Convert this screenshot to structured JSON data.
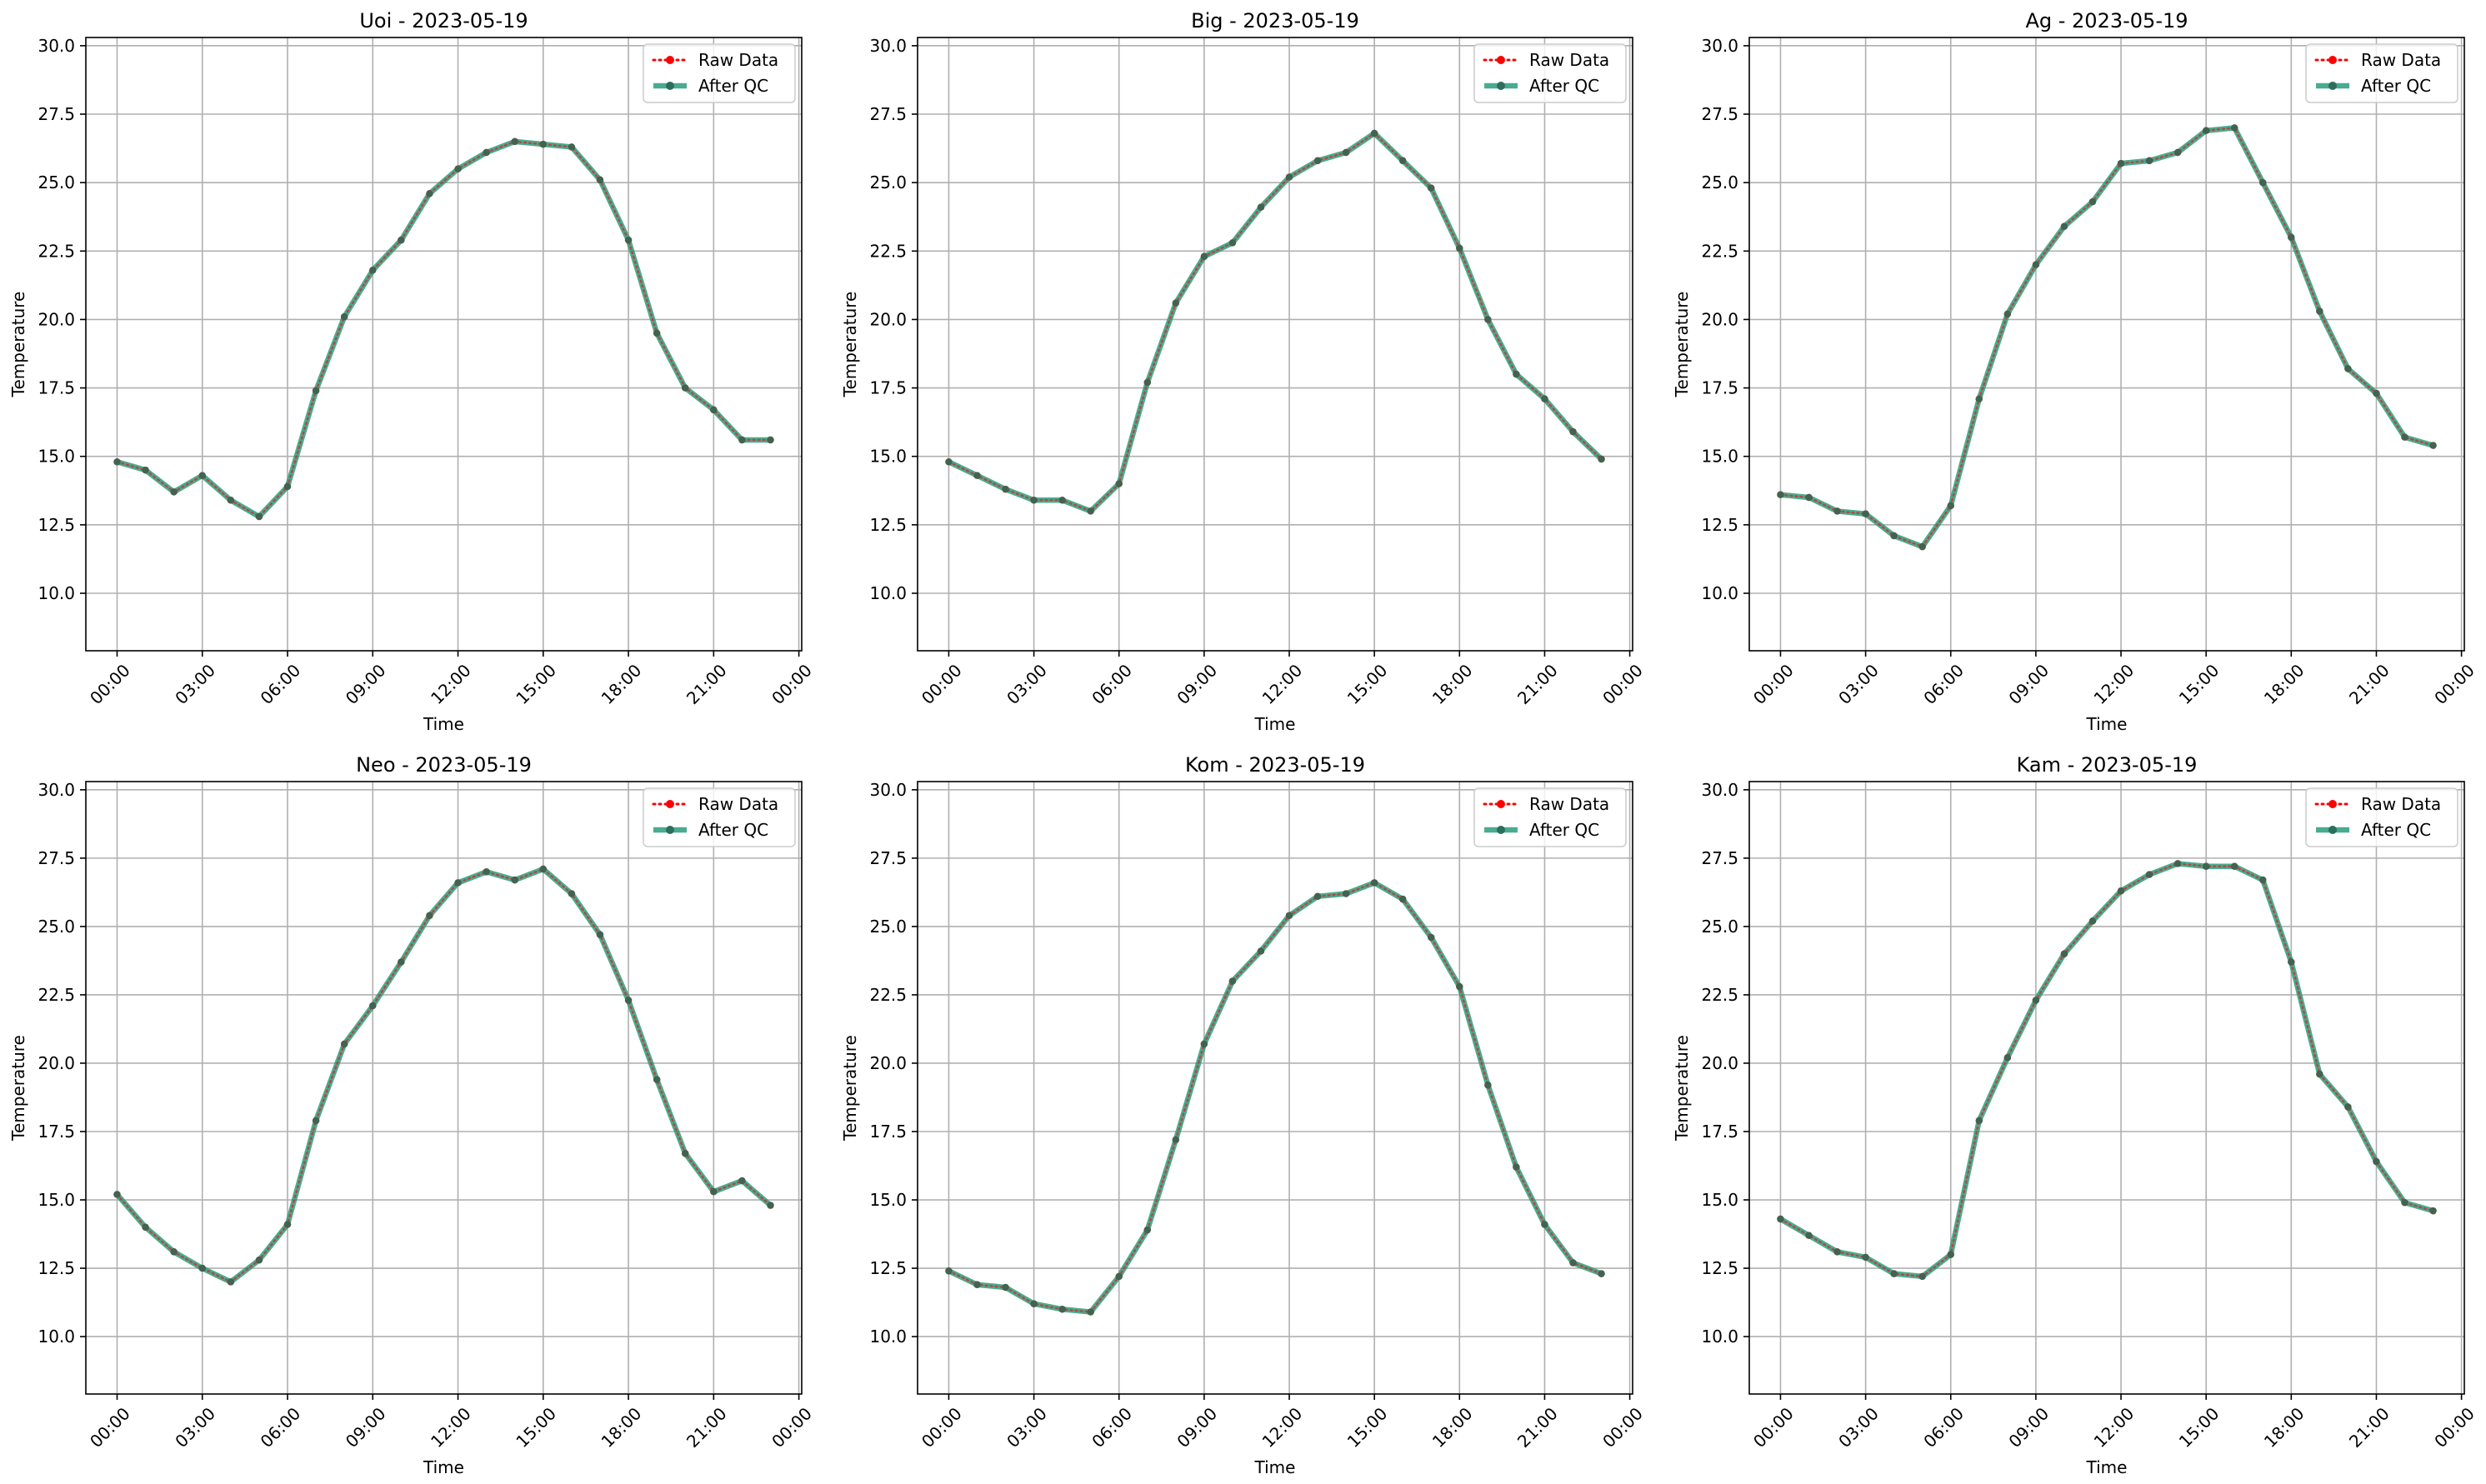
{
  "figure": {
    "background": "#ffffff"
  },
  "style": {
    "raw_color": "#ff0000",
    "qc_color": "#2a9d7e",
    "grid_color": "#b0b0b0"
  },
  "chart_data": [
    {
      "type": "line",
      "title": "Uoi - 2023-05-19",
      "xlabel": "Time",
      "ylabel": "Temperature",
      "xlim": [
        -1.1,
        24.1
      ],
      "ylim": [
        7.9,
        30.3
      ],
      "xticks": [
        0,
        3,
        6,
        9,
        12,
        15,
        18,
        21,
        24
      ],
      "xtick_labels": [
        "00:00",
        "03:00",
        "06:00",
        "09:00",
        "12:00",
        "15:00",
        "18:00",
        "21:00",
        "00:00"
      ],
      "yticks": [
        10.0,
        12.5,
        15.0,
        17.5,
        20.0,
        22.5,
        25.0,
        27.5,
        30.0
      ],
      "ytick_labels": [
        "10.0",
        "12.5",
        "15.0",
        "17.5",
        "20.0",
        "22.5",
        "25.0",
        "27.5",
        "30.0"
      ],
      "grid": true,
      "legend_position": "upper-right",
      "x": [
        0,
        1,
        2,
        3,
        4,
        5,
        6,
        7,
        8,
        9,
        10,
        11,
        12,
        13,
        14,
        15,
        16,
        17,
        18,
        19,
        20,
        21,
        22,
        23
      ],
      "series": [
        {
          "name": "Raw Data",
          "color": "#ff0000",
          "style": "dotted",
          "values": [
            14.8,
            14.5,
            13.7,
            14.3,
            13.4,
            12.8,
            13.9,
            17.4,
            20.1,
            21.8,
            22.9,
            24.6,
            25.5,
            26.1,
            26.5,
            26.4,
            26.3,
            25.1,
            22.9,
            19.5,
            17.5,
            16.7,
            15.6,
            15.6
          ]
        },
        {
          "name": "After QC",
          "color": "#2a9d7e",
          "style": "solid",
          "values": [
            14.8,
            14.5,
            13.7,
            14.3,
            13.4,
            12.8,
            13.9,
            17.4,
            20.1,
            21.8,
            22.9,
            24.6,
            25.5,
            26.1,
            26.5,
            26.4,
            26.3,
            25.1,
            22.9,
            19.5,
            17.5,
            16.7,
            15.6,
            15.6
          ]
        }
      ]
    },
    {
      "type": "line",
      "title": "Big - 2023-05-19",
      "xlabel": "Time",
      "ylabel": "Temperature",
      "xlim": [
        -1.1,
        24.1
      ],
      "ylim": [
        7.9,
        30.3
      ],
      "xticks": [
        0,
        3,
        6,
        9,
        12,
        15,
        18,
        21,
        24
      ],
      "xtick_labels": [
        "00:00",
        "03:00",
        "06:00",
        "09:00",
        "12:00",
        "15:00",
        "18:00",
        "21:00",
        "00:00"
      ],
      "yticks": [
        10.0,
        12.5,
        15.0,
        17.5,
        20.0,
        22.5,
        25.0,
        27.5,
        30.0
      ],
      "ytick_labels": [
        "10.0",
        "12.5",
        "15.0",
        "17.5",
        "20.0",
        "22.5",
        "25.0",
        "27.5",
        "30.0"
      ],
      "grid": true,
      "legend_position": "upper-right",
      "x": [
        0,
        1,
        2,
        3,
        4,
        5,
        6,
        7,
        8,
        9,
        10,
        11,
        12,
        13,
        14,
        15,
        16,
        17,
        18,
        19,
        20,
        21,
        22,
        23
      ],
      "series": [
        {
          "name": "Raw Data",
          "color": "#ff0000",
          "style": "dotted",
          "values": [
            14.8,
            14.3,
            13.8,
            13.4,
            13.4,
            13.0,
            14.0,
            17.7,
            20.6,
            22.3,
            22.8,
            24.1,
            25.2,
            25.8,
            26.1,
            26.8,
            25.8,
            24.8,
            22.6,
            20.0,
            18.0,
            17.1,
            15.9,
            14.9
          ]
        },
        {
          "name": "After QC",
          "color": "#2a9d7e",
          "style": "solid",
          "values": [
            14.8,
            14.3,
            13.8,
            13.4,
            13.4,
            13.0,
            14.0,
            17.7,
            20.6,
            22.3,
            22.8,
            24.1,
            25.2,
            25.8,
            26.1,
            26.8,
            25.8,
            24.8,
            22.6,
            20.0,
            18.0,
            17.1,
            15.9,
            14.9
          ]
        }
      ]
    },
    {
      "type": "line",
      "title": "Ag - 2023-05-19",
      "xlabel": "Time",
      "ylabel": "Temperature",
      "xlim": [
        -1.1,
        24.1
      ],
      "ylim": [
        7.9,
        30.3
      ],
      "xticks": [
        0,
        3,
        6,
        9,
        12,
        15,
        18,
        21,
        24
      ],
      "xtick_labels": [
        "00:00",
        "03:00",
        "06:00",
        "09:00",
        "12:00",
        "15:00",
        "18:00",
        "21:00",
        "00:00"
      ],
      "yticks": [
        10.0,
        12.5,
        15.0,
        17.5,
        20.0,
        22.5,
        25.0,
        27.5,
        30.0
      ],
      "ytick_labels": [
        "10.0",
        "12.5",
        "15.0",
        "17.5",
        "20.0",
        "22.5",
        "25.0",
        "27.5",
        "30.0"
      ],
      "grid": true,
      "legend_position": "upper-right",
      "x": [
        0,
        1,
        2,
        3,
        4,
        5,
        6,
        7,
        8,
        9,
        10,
        11,
        12,
        13,
        14,
        15,
        16,
        17,
        18,
        19,
        20,
        21,
        22,
        23
      ],
      "series": [
        {
          "name": "Raw Data",
          "color": "#ff0000",
          "style": "dotted",
          "values": [
            13.6,
            13.5,
            13.0,
            12.9,
            12.1,
            11.7,
            13.2,
            17.1,
            20.2,
            22.0,
            23.4,
            24.3,
            25.7,
            25.8,
            26.1,
            26.9,
            27.0,
            25.0,
            23.0,
            20.3,
            18.2,
            17.3,
            15.7,
            15.4
          ]
        },
        {
          "name": "After QC",
          "color": "#2a9d7e",
          "style": "solid",
          "values": [
            13.6,
            13.5,
            13.0,
            12.9,
            12.1,
            11.7,
            13.2,
            17.1,
            20.2,
            22.0,
            23.4,
            24.3,
            25.7,
            25.8,
            26.1,
            26.9,
            27.0,
            25.0,
            23.0,
            20.3,
            18.2,
            17.3,
            15.7,
            15.4
          ]
        }
      ]
    },
    {
      "type": "line",
      "title": "Neo - 2023-05-19",
      "xlabel": "Time",
      "ylabel": "Temperature",
      "xlim": [
        -1.1,
        24.1
      ],
      "ylim": [
        7.9,
        30.3
      ],
      "xticks": [
        0,
        3,
        6,
        9,
        12,
        15,
        18,
        21,
        24
      ],
      "xtick_labels": [
        "00:00",
        "03:00",
        "06:00",
        "09:00",
        "12:00",
        "15:00",
        "18:00",
        "21:00",
        "00:00"
      ],
      "yticks": [
        10.0,
        12.5,
        15.0,
        17.5,
        20.0,
        22.5,
        25.0,
        27.5,
        30.0
      ],
      "ytick_labels": [
        "10.0",
        "12.5",
        "15.0",
        "17.5",
        "20.0",
        "22.5",
        "25.0",
        "27.5",
        "30.0"
      ],
      "grid": true,
      "legend_position": "upper-right",
      "x": [
        0,
        1,
        2,
        3,
        4,
        5,
        6,
        7,
        8,
        9,
        10,
        11,
        12,
        13,
        14,
        15,
        16,
        17,
        18,
        19,
        20,
        21,
        22,
        23
      ],
      "series": [
        {
          "name": "Raw Data",
          "color": "#ff0000",
          "style": "dotted",
          "values": [
            15.2,
            14.0,
            13.1,
            12.5,
            12.0,
            12.8,
            14.1,
            17.9,
            20.7,
            22.1,
            23.7,
            25.4,
            26.6,
            27.0,
            26.7,
            27.1,
            26.2,
            24.7,
            22.3,
            19.4,
            16.7,
            15.3,
            15.7,
            14.8
          ]
        },
        {
          "name": "After QC",
          "color": "#2a9d7e",
          "style": "solid",
          "values": [
            15.2,
            14.0,
            13.1,
            12.5,
            12.0,
            12.8,
            14.1,
            17.9,
            20.7,
            22.1,
            23.7,
            25.4,
            26.6,
            27.0,
            26.7,
            27.1,
            26.2,
            24.7,
            22.3,
            19.4,
            16.7,
            15.3,
            15.7,
            14.8
          ]
        }
      ]
    },
    {
      "type": "line",
      "title": "Kom - 2023-05-19",
      "xlabel": "Time",
      "ylabel": "Temperature",
      "xlim": [
        -1.1,
        24.1
      ],
      "ylim": [
        7.9,
        30.3
      ],
      "xticks": [
        0,
        3,
        6,
        9,
        12,
        15,
        18,
        21,
        24
      ],
      "xtick_labels": [
        "00:00",
        "03:00",
        "06:00",
        "09:00",
        "12:00",
        "15:00",
        "18:00",
        "21:00",
        "00:00"
      ],
      "yticks": [
        10.0,
        12.5,
        15.0,
        17.5,
        20.0,
        22.5,
        25.0,
        27.5,
        30.0
      ],
      "ytick_labels": [
        "10.0",
        "12.5",
        "15.0",
        "17.5",
        "20.0",
        "22.5",
        "25.0",
        "27.5",
        "30.0"
      ],
      "grid": true,
      "legend_position": "upper-right",
      "x": [
        0,
        1,
        2,
        3,
        4,
        5,
        6,
        7,
        8,
        9,
        10,
        11,
        12,
        13,
        14,
        15,
        16,
        17,
        18,
        19,
        20,
        21,
        22,
        23
      ],
      "series": [
        {
          "name": "Raw Data",
          "color": "#ff0000",
          "style": "dotted",
          "values": [
            12.4,
            11.9,
            11.8,
            11.2,
            11.0,
            10.9,
            12.2,
            13.9,
            17.2,
            20.7,
            23.0,
            24.1,
            25.4,
            26.1,
            26.2,
            26.6,
            26.0,
            24.6,
            22.8,
            19.2,
            16.2,
            14.1,
            12.7,
            12.3
          ]
        },
        {
          "name": "After QC",
          "color": "#2a9d7e",
          "style": "solid",
          "values": [
            12.4,
            11.9,
            11.8,
            11.2,
            11.0,
            10.9,
            12.2,
            13.9,
            17.2,
            20.7,
            23.0,
            24.1,
            25.4,
            26.1,
            26.2,
            26.6,
            26.0,
            24.6,
            22.8,
            19.2,
            16.2,
            14.1,
            12.7,
            12.3
          ]
        }
      ]
    },
    {
      "type": "line",
      "title": "Kam - 2023-05-19",
      "xlabel": "Time",
      "ylabel": "Temperature",
      "xlim": [
        -1.1,
        24.1
      ],
      "ylim": [
        7.9,
        30.3
      ],
      "xticks": [
        0,
        3,
        6,
        9,
        12,
        15,
        18,
        21,
        24
      ],
      "xtick_labels": [
        "00:00",
        "03:00",
        "06:00",
        "09:00",
        "12:00",
        "15:00",
        "18:00",
        "21:00",
        "00:00"
      ],
      "yticks": [
        10.0,
        12.5,
        15.0,
        17.5,
        20.0,
        22.5,
        25.0,
        27.5,
        30.0
      ],
      "ytick_labels": [
        "10.0",
        "12.5",
        "15.0",
        "17.5",
        "20.0",
        "22.5",
        "25.0",
        "27.5",
        "30.0"
      ],
      "grid": true,
      "legend_position": "upper-right",
      "x": [
        0,
        1,
        2,
        3,
        4,
        5,
        6,
        7,
        8,
        9,
        10,
        11,
        12,
        13,
        14,
        15,
        16,
        17,
        18,
        19,
        20,
        21,
        22,
        23
      ],
      "series": [
        {
          "name": "Raw Data",
          "color": "#ff0000",
          "style": "dotted",
          "values": [
            14.3,
            13.7,
            13.1,
            12.9,
            12.3,
            12.2,
            13.0,
            17.9,
            20.2,
            22.3,
            24.0,
            25.2,
            26.3,
            26.9,
            27.3,
            27.2,
            27.2,
            26.7,
            23.7,
            19.6,
            18.4,
            16.4,
            14.9,
            14.6
          ]
        },
        {
          "name": "After QC",
          "color": "#2a9d7e",
          "style": "solid",
          "values": [
            14.3,
            13.7,
            13.1,
            12.9,
            12.3,
            12.2,
            13.0,
            17.9,
            20.2,
            22.3,
            24.0,
            25.2,
            26.3,
            26.9,
            27.3,
            27.2,
            27.2,
            26.7,
            23.7,
            19.6,
            18.4,
            16.4,
            14.9,
            14.6
          ]
        }
      ]
    }
  ]
}
